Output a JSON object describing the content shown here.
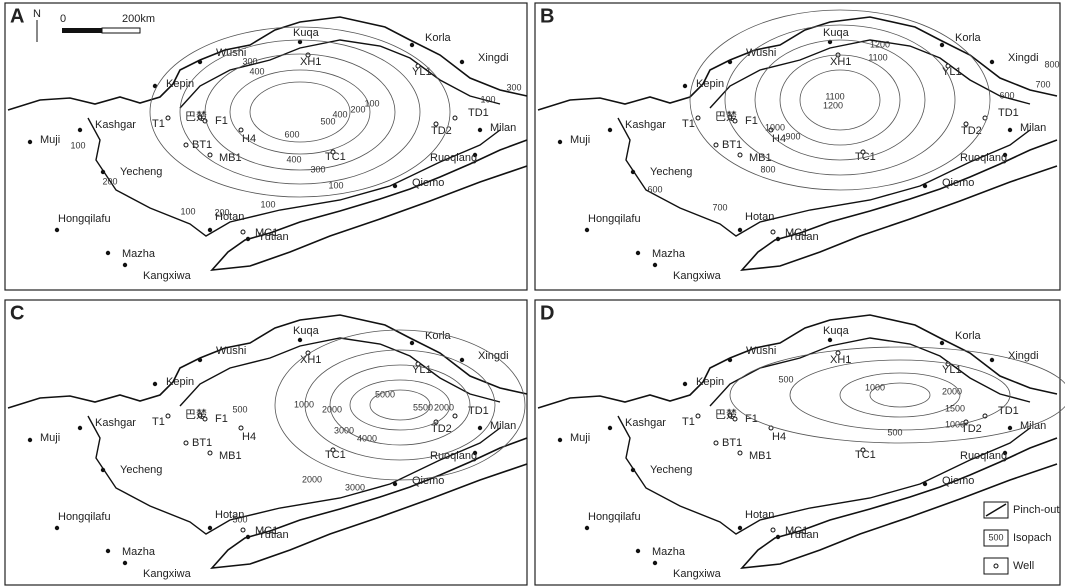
{
  "panels": [
    {
      "letter": "A",
      "contour_labels": [
        "300",
        "400",
        "600",
        "500",
        "400",
        "200",
        "100",
        "100",
        "300",
        "100",
        "200",
        "400",
        "300",
        "100",
        "100",
        "200",
        "100"
      ]
    },
    {
      "letter": "B",
      "contour_labels": [
        "1200",
        "1100",
        "1100",
        "1200",
        "1000",
        "900",
        "800",
        "700",
        "600",
        "600",
        "700",
        "800"
      ]
    },
    {
      "letter": "C",
      "contour_labels": [
        "500",
        "1000",
        "2000",
        "3000",
        "4000",
        "5000",
        "5500",
        "2000",
        "2000",
        "3000",
        "500"
      ]
    },
    {
      "letter": "D",
      "contour_labels": [
        "500",
        "1000",
        "2000",
        "1500",
        "1000",
        "500"
      ]
    }
  ],
  "places": [
    "Wushi",
    "Kuqa",
    "Korla",
    "Xingdi",
    "Kepin",
    "Kashgar",
    "Muji",
    "Yecheng",
    "Hotan",
    "Yutian",
    "Qiemo",
    "Ruoqiang",
    "Milan",
    "Hongqilafu",
    "Mazha",
    "Kangxiwa"
  ],
  "wells": [
    "XH1",
    "YL1",
    "T1",
    "巴楚",
    "F1",
    "H4",
    "BT1",
    "MB1",
    "TC1",
    "TD2",
    "TD1",
    "MC1"
  ],
  "scale": {
    "north": "N",
    "zero": "0",
    "distance": "200km"
  },
  "legend": {
    "pinch_out": "Pinch-out",
    "isopach": "Isopach",
    "isopach_sample": "500",
    "well": "Well"
  }
}
